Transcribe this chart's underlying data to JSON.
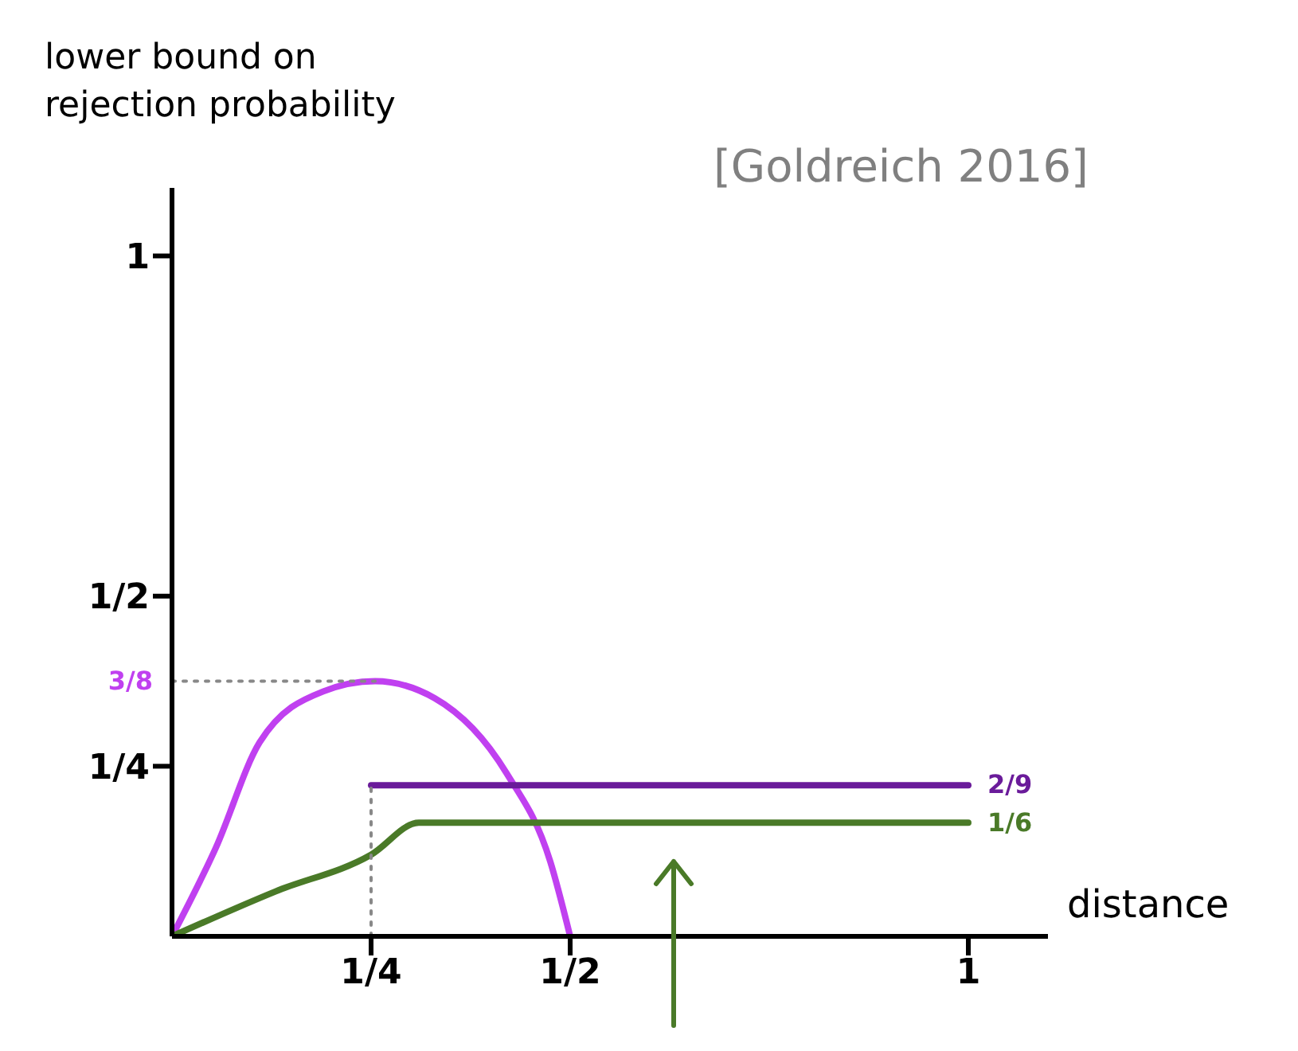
{
  "chart_data": {
    "type": "line",
    "ylabel": "lower bound on rejection probability",
    "xlabel": "distance",
    "annotations": [
      "[Goldreich 2016]"
    ],
    "xlim": [
      0,
      1.1
    ],
    "ylim": [
      0,
      1.1
    ],
    "xticks": [
      {
        "value": 0.25,
        "label": "1/4"
      },
      {
        "value": 0.5,
        "label": "1/2"
      },
      {
        "value": 1,
        "label": "1"
      }
    ],
    "yticks": [
      {
        "value": 0.25,
        "label": "1/4"
      },
      {
        "value": 0.5,
        "label": "1/2"
      },
      {
        "value": 1,
        "label": "1"
      }
    ],
    "marker": "none",
    "series": [
      {
        "color": "#c040f0",
        "x": [
          0,
          0.055,
          0.11,
          0.19,
          0.255,
          0.33,
          0.42,
          0.475,
          0.5
        ],
        "values": [
          0,
          0.13,
          0.285,
          0.36,
          0.375,
          0.35,
          0.24,
          0.11,
          0
        ]
      },
      {
        "color": "#6a1b9a",
        "x": [
          0.25,
          1
        ],
        "values": [
          0.222,
          0.222
        ],
        "value_labels": [
          null,
          "2/9"
        ]
      },
      {
        "color": "#4a7a28",
        "x": [
          0,
          0.13,
          0.25,
          0.31,
          1
        ],
        "values": [
          0,
          0.066,
          0.12,
          0.167,
          0.167
        ],
        "value_labels": [
          null,
          null,
          null,
          null,
          "1/6"
        ]
      },
      {
        "color": "#888888",
        "line_style": "dotted",
        "x": [
          0,
          0.255
        ],
        "values": [
          0.375,
          0.375
        ],
        "value_labels": [
          "3/8",
          null
        ]
      },
      {
        "color": "#888888",
        "line_style": "dotted",
        "x": [
          0.25,
          0.25
        ],
        "values": [
          0,
          0.222
        ]
      }
    ]
  }
}
